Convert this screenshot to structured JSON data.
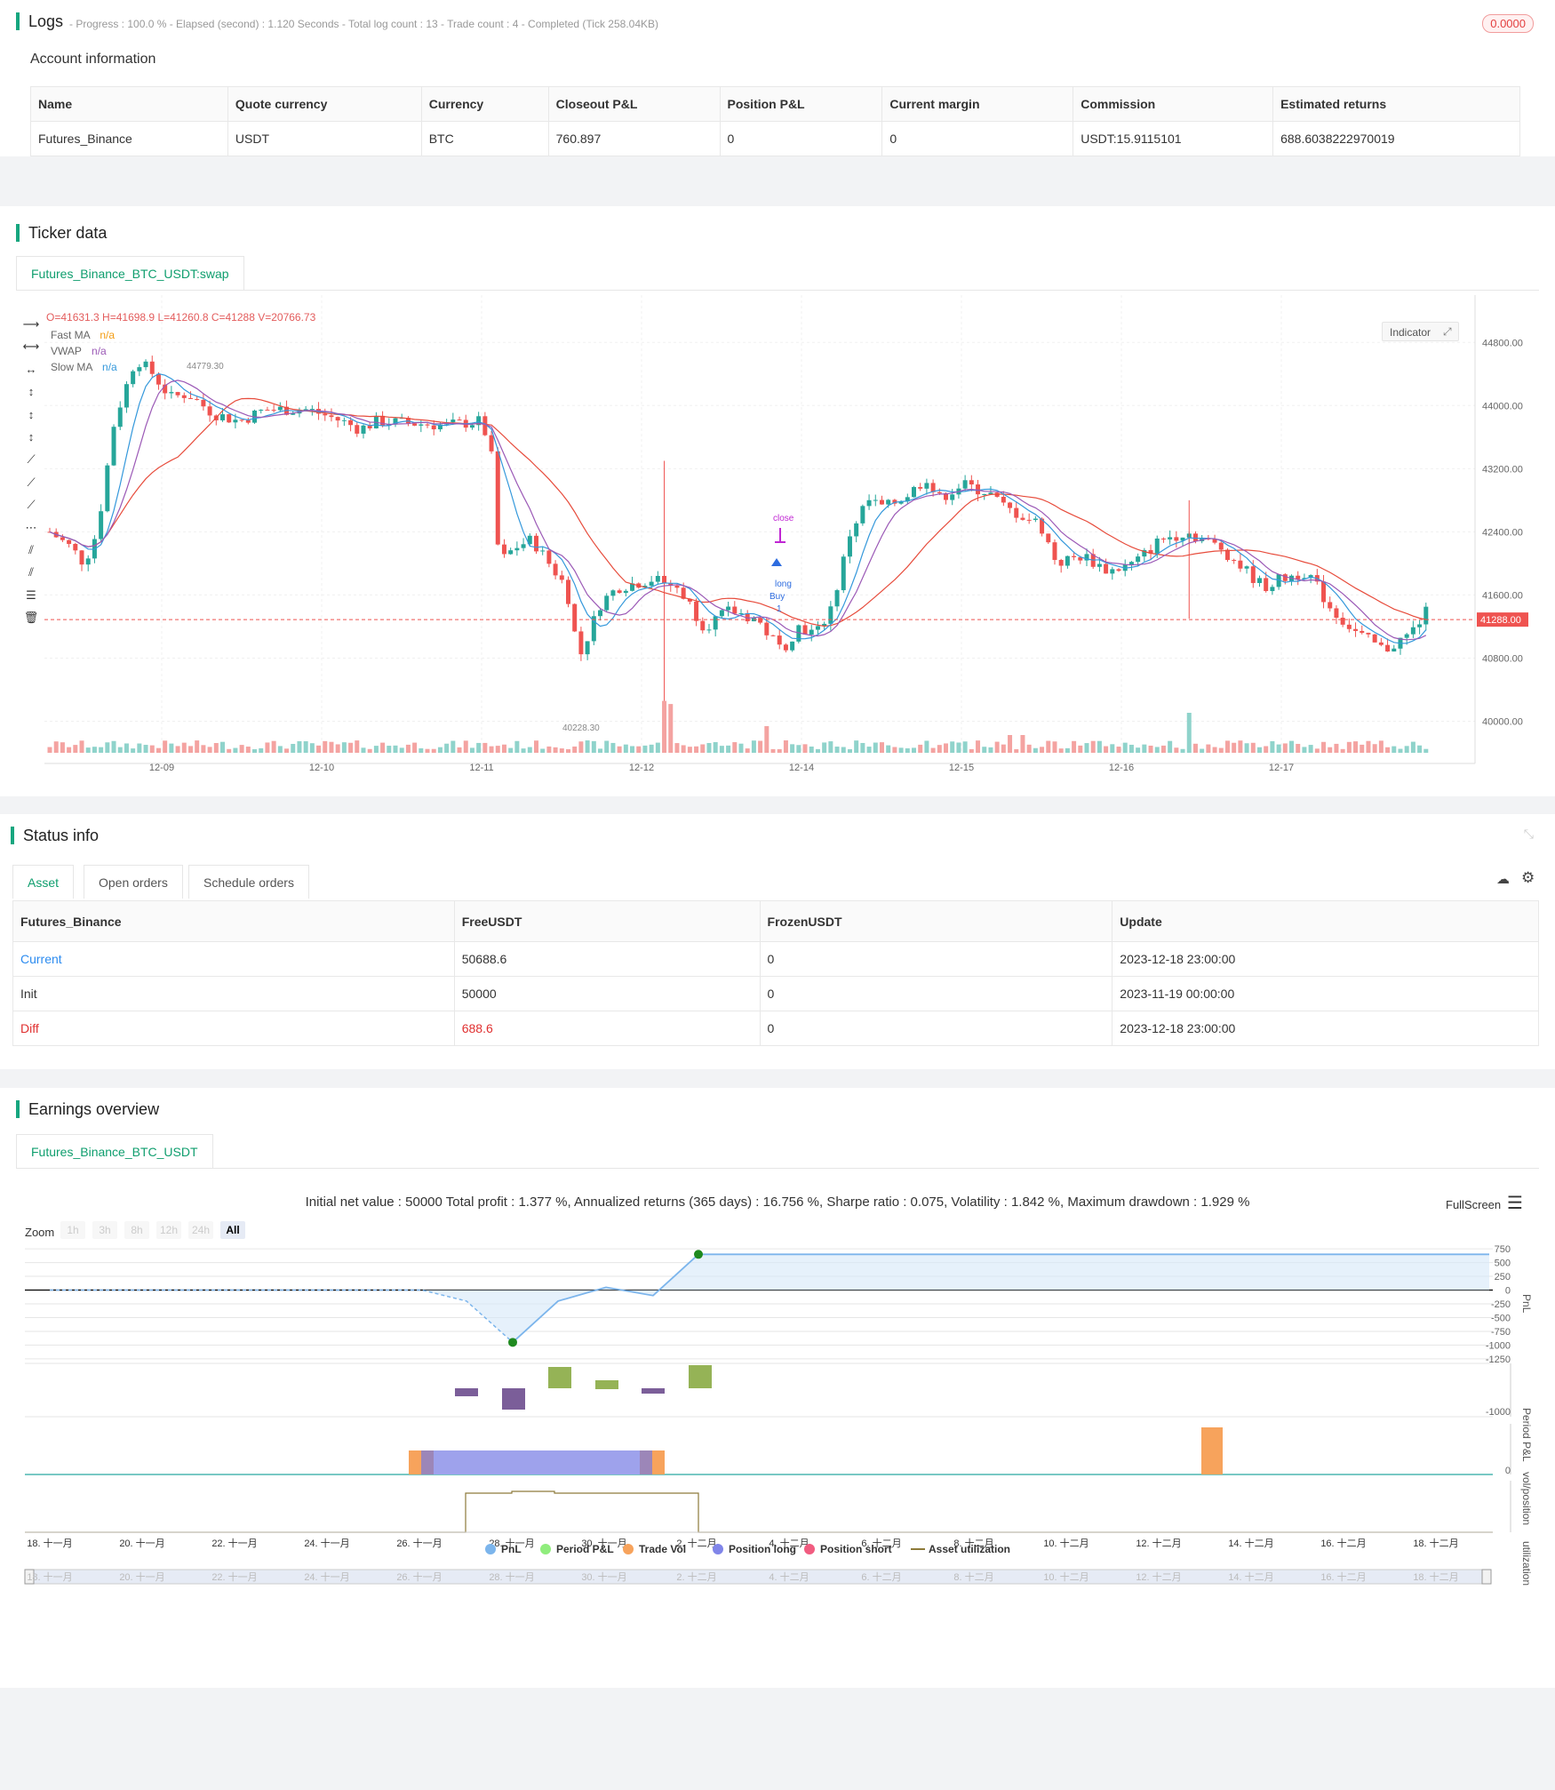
{
  "logs": {
    "title": "Logs",
    "meta": "- Progress : 100.0 % - Elapsed (second) : 1.120  Seconds - Total log count : 13 - Trade count : 4 - Completed (Tick 258.04KB)",
    "badge": "0.0000"
  },
  "account": {
    "title": "Account information",
    "headers": [
      "Name",
      "Quote currency",
      "Currency",
      "Closeout P&L",
      "Position P&L",
      "Current margin",
      "Commission",
      "Estimated returns"
    ],
    "row": [
      "Futures_Binance",
      "USDT",
      "BTC",
      "760.897",
      "0",
      "0",
      "USDT:15.9115101",
      "688.6038222970019"
    ]
  },
  "ticker": {
    "title": "Ticker data",
    "tab": "Futures_Binance_BTC_USDT:swap",
    "ohlc": "O=41631.3 H=41698.9 L=41260.8 C=41288 V=20766.73",
    "indicators": [
      {
        "name": "Fast MA",
        "value": "n/a",
        "color": "#f39c12"
      },
      {
        "name": "VWAP",
        "value": "n/a",
        "color": "#9b59b6"
      },
      {
        "name": "Slow MA",
        "value": "n/a",
        "color": "#3498db"
      }
    ],
    "indicator_button": "Indicator",
    "price_axis": [
      "44800.00",
      "44000.00",
      "43200.00",
      "42400.00",
      "41600.00",
      "40800.00",
      "40000.00"
    ],
    "current_price": "41288.00",
    "date_axis": [
      "12-09",
      "12-10",
      "12-11",
      "12-12",
      "12-14",
      "12-15",
      "12-16",
      "12-17"
    ],
    "high_label": "44779.30",
    "low_label": "40228.30",
    "markers": {
      "close": "close",
      "long": "long",
      "buy": "Buy",
      "buy_count": "1"
    }
  },
  "status": {
    "title": "Status info",
    "tabs": [
      "Asset",
      "Open orders",
      "Schedule orders"
    ],
    "headers": [
      "Futures_Binance",
      "FreeUSDT",
      "FrozenUSDT",
      "Update"
    ],
    "rows": [
      [
        "Current",
        "50688.6",
        "0",
        "2023-12-18 23:00:00"
      ],
      [
        "Init",
        "50000",
        "0",
        "2023-11-19 00:00:00"
      ],
      [
        "Diff",
        "688.6",
        "0",
        "2023-12-18 23:00:00"
      ]
    ]
  },
  "earnings": {
    "title": "Earnings overview",
    "tab": "Futures_Binance_BTC_USDT",
    "summary": "Initial net value : 50000 Total profit : 1.377 %, Annualized returns (365 days) : 16.756 %, Sharpe ratio : 0.075, Volatility : 1.842 %, Maximum drawdown : 1.929 %",
    "fullscreen": "FullScreen",
    "zoom_label": "Zoom",
    "zoom_options": [
      "1h",
      "3h",
      "8h",
      "12h",
      "24h",
      "All"
    ],
    "pnl_axis": [
      "750",
      "500",
      "250",
      "0",
      "-250",
      "-500",
      "-750",
      "-1000",
      "-1250"
    ],
    "period_axis": [
      "-1000"
    ],
    "vol_axis": [
      "0"
    ],
    "side_labels": [
      "PnL",
      "Period P&L",
      "vol/position",
      "utilization"
    ],
    "date_axis": [
      "18. 十一月",
      "20. 十一月",
      "22. 十一月",
      "24. 十一月",
      "26. 十一月",
      "28. 十一月",
      "30. 十一月",
      "2. 十二月",
      "4. 十二月",
      "6. 十二月",
      "8. 十二月",
      "10. 十二月",
      "12. 十二月",
      "14. 十二月",
      "16. 十二月",
      "18. 十二月"
    ],
    "legend": [
      {
        "name": "PnL",
        "color": "#7cb5ec"
      },
      {
        "name": "Period P&L",
        "color": "#90ed7d"
      },
      {
        "name": "Trade Vol",
        "color": "#f7a35c"
      },
      {
        "name": "Position long",
        "color": "#8085e9"
      },
      {
        "name": "Position short",
        "color": "#f15c80"
      },
      {
        "name": "Asset utilization",
        "color": "#8d7a3a"
      }
    ]
  }
}
